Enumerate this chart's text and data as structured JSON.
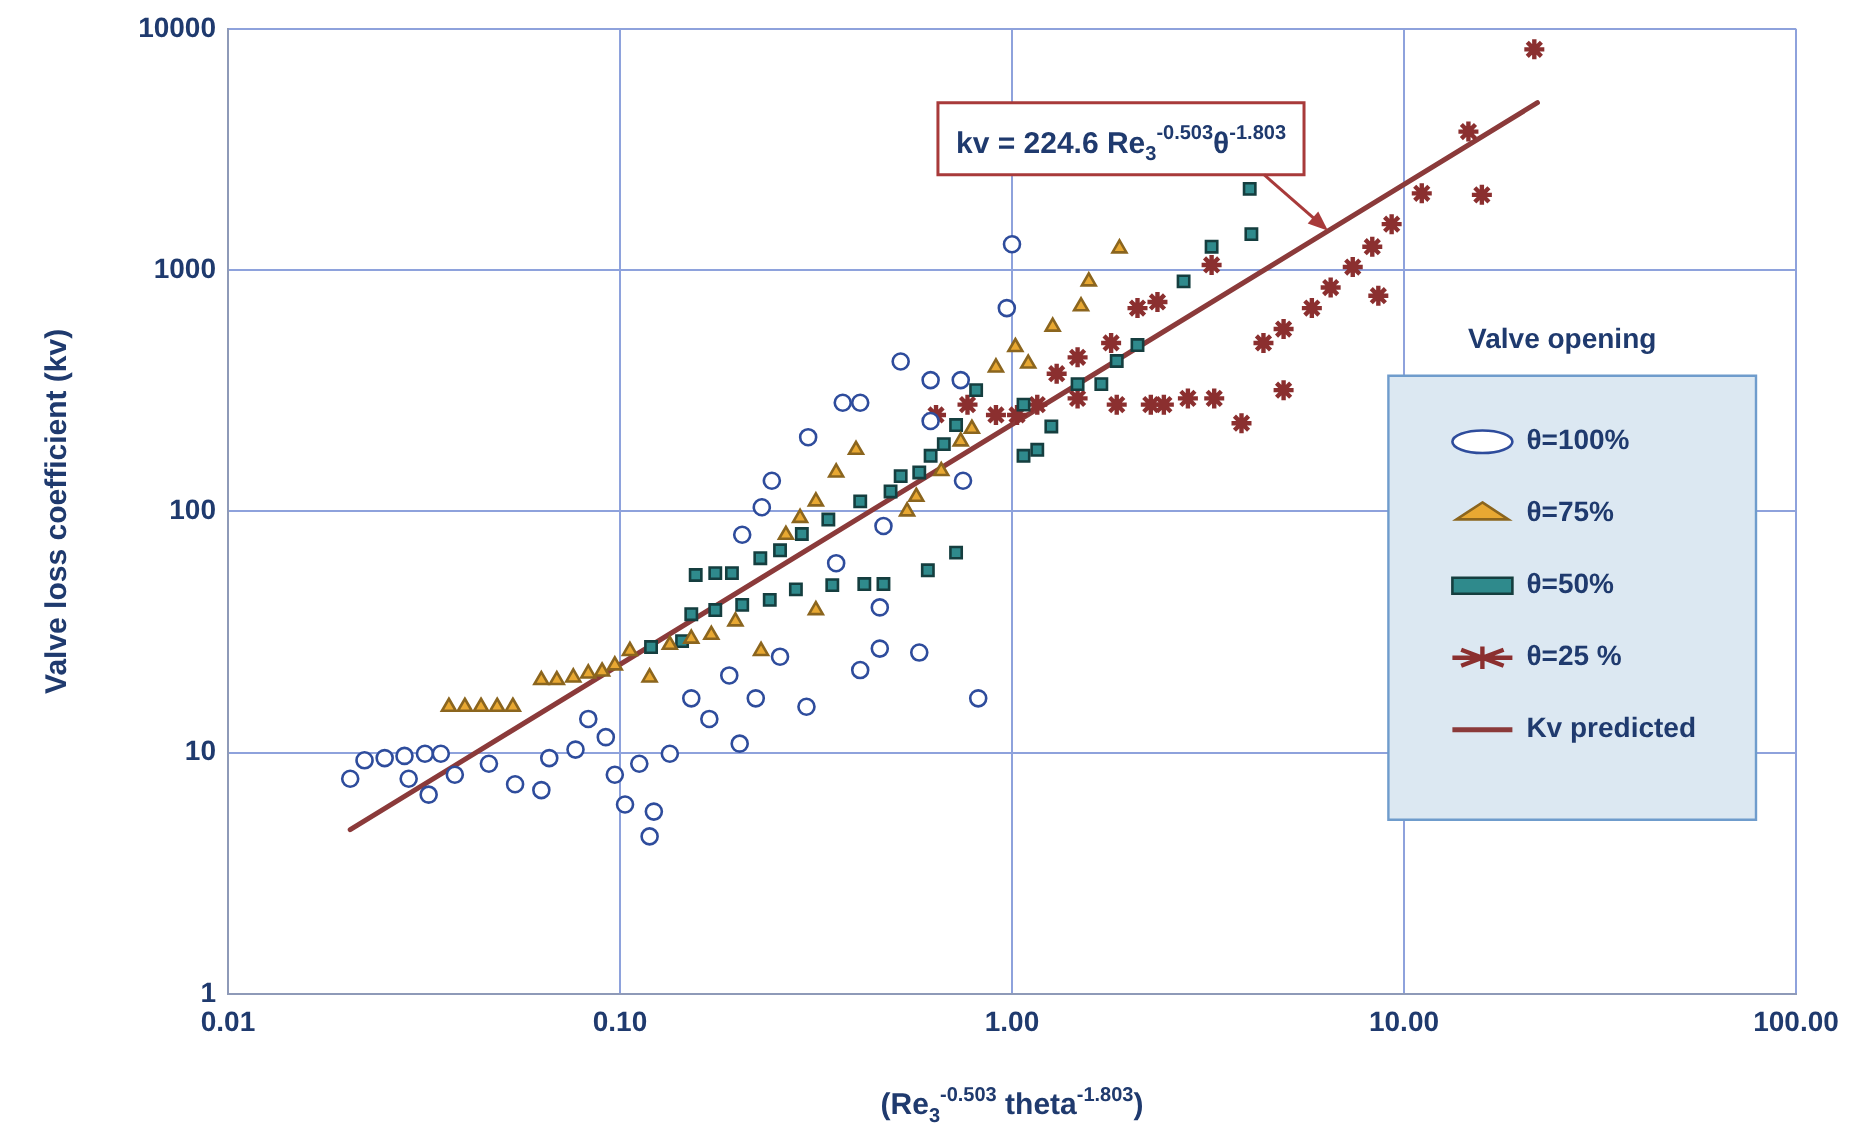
{
  "chart_data": {
    "type": "scatter",
    "xlabel": "(Re$_{3}$$^{-0.503}$ theta$^{-1.803}$)",
    "ylabel": "Valve loss coefficient (kv)",
    "legend_title": "Valve opening",
    "legend": "right",
    "grid": true,
    "log": "xy",
    "xlim": [
      0.01,
      100
    ],
    "ylim": [
      1,
      10000
    ],
    "xticks": [
      {
        "value": 0.01,
        "label": "0.01"
      },
      {
        "value": 0.1,
        "label": "0.10"
      },
      {
        "value": 1,
        "label": "1.00"
      },
      {
        "value": 10,
        "label": "10.00"
      },
      {
        "value": 100,
        "label": "100.00"
      }
    ],
    "yticks": [
      1,
      10,
      100,
      1000,
      10000
    ],
    "annotations": [
      {
        "text": "kv = 224.6 Re$_{3}$$^{-0.503}$θ$^{-1.803}$",
        "x": 6.4,
        "y": 1456
      }
    ],
    "series": [
      {
        "name": "θ=100%",
        "color": "#2e4c9c",
        "marker": "circle",
        "x": [
          0.0205,
          0.0223,
          0.0251,
          0.0282,
          0.0318,
          0.0349,
          0.0289,
          0.0325,
          0.0379,
          0.0463,
          0.054,
          0.063,
          0.066,
          0.077,
          0.083,
          0.092,
          0.097,
          0.103,
          0.112,
          0.119,
          0.122,
          0.134,
          0.152,
          0.169,
          0.19,
          0.202,
          0.222,
          0.244,
          0.205,
          0.23,
          0.256,
          0.299,
          0.302,
          0.356,
          0.37,
          0.41,
          0.41,
          0.46,
          0.46,
          0.47,
          0.52,
          0.58,
          0.62,
          0.62,
          0.74,
          0.75,
          0.82,
          0.97,
          1.0
        ],
        "values": [
          7.8,
          9.3,
          9.5,
          9.7,
          9.9,
          9.9,
          7.8,
          6.7,
          8.1,
          9.0,
          7.4,
          7.0,
          9.5,
          10.3,
          13.8,
          11.6,
          8.1,
          6.1,
          9.0,
          4.5,
          5.7,
          9.9,
          16.8,
          13.8,
          20.9,
          10.9,
          16.8,
          134,
          80,
          104,
          25,
          15.5,
          203,
          61,
          282,
          282,
          22,
          40,
          27,
          87,
          418,
          26,
          350,
          237,
          350,
          134,
          16.8,
          696,
          1280
        ]
      },
      {
        "name": "θ=75%",
        "color": "#e8a832",
        "marker": "triangle",
        "x": [
          0.0366,
          0.0402,
          0.0442,
          0.0486,
          0.0533,
          0.063,
          0.069,
          0.076,
          0.083,
          0.09,
          0.097,
          0.106,
          0.119,
          0.134,
          0.152,
          0.171,
          0.197,
          0.229,
          0.265,
          0.288,
          0.316,
          0.356,
          0.4,
          0.316,
          0.54,
          0.57,
          0.66,
          0.74,
          0.79,
          0.91,
          1.02,
          1.1,
          1.27,
          1.5,
          1.57,
          1.88
        ],
        "values": [
          15.5,
          15.5,
          15.5,
          15.5,
          15.5,
          20.0,
          20.0,
          20.5,
          21.3,
          21.7,
          23,
          26.4,
          20.5,
          28,
          29.7,
          30.8,
          35,
          26.4,
          80,
          94,
          110,
          145,
          180,
          39,
          100,
          115,
          147,
          195,
          220,
          395,
          480,
          410,
          583,
          708,
          898,
          1230
        ]
      },
      {
        "name": "θ=50%",
        "color": "#2f8a8c",
        "marker": "square",
        "x": [
          0.12,
          0.144,
          0.156,
          0.175,
          0.193,
          0.228,
          0.256,
          0.152,
          0.175,
          0.205,
          0.241,
          0.281,
          0.348,
          0.42,
          0.47,
          0.61,
          0.72,
          0.291,
          0.34,
          0.41,
          0.49,
          0.52,
          0.58,
          0.62,
          0.67,
          0.72,
          0.81,
          1.07,
          1.16,
          1.26,
          1.07,
          1.47,
          1.69,
          1.85,
          2.09,
          2.74,
          3.23,
          4.04,
          4.08
        ],
        "values": [
          27.4,
          29,
          54.5,
          55.5,
          55.5,
          64,
          69,
          37.5,
          39,
          41,
          43,
          47.5,
          49.5,
          50,
          50,
          57,
          67.5,
          80.6,
          92.5,
          110,
          121,
          140,
          145,
          170,
          190,
          228,
          318,
          170,
          180,
          225,
          277,
          337,
          337,
          420,
          489,
          898,
          1250,
          2170,
          1410
        ]
      },
      {
        "name": "θ=25 %",
        "color": "#8b2f2f",
        "marker": "cross",
        "x": [
          0.64,
          0.77,
          0.91,
          1.03,
          1.16,
          1.3,
          1.47,
          1.79,
          2.09,
          2.35,
          3.23,
          1.47,
          1.85,
          2.26,
          2.44,
          2.81,
          3.28,
          3.85,
          4.93,
          4.38,
          4.93,
          5.82,
          6.5,
          7.4,
          8.3,
          8.6,
          9.3,
          11.1,
          15.8,
          14.6,
          21.5
        ],
        "values": [
          251,
          277,
          251,
          251,
          277,
          372,
          435,
          499,
          696,
          738,
          1050,
          294,
          277,
          277,
          277,
          294,
          294,
          232,
          318,
          499,
          570,
          696,
          847,
          1030,
          1250,
          783,
          1550,
          2080,
          2050,
          3750,
          8220
        ]
      },
      {
        "name": "Kv predicted",
        "color": "#8b3a3a",
        "type": "line",
        "marker": "none",
        "x": [
          0.0205,
          21.9
        ],
        "values": [
          4.8,
          4940
        ]
      }
    ]
  }
}
